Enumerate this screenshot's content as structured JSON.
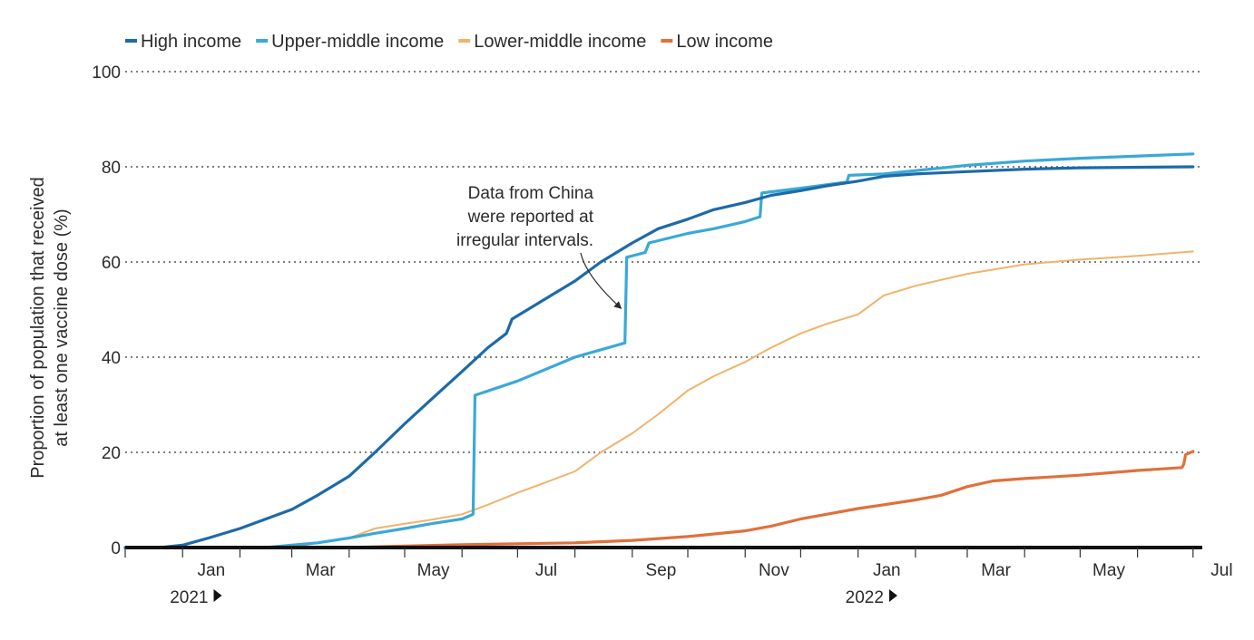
{
  "chart_data": {
    "type": "line",
    "title": "",
    "xlabel": "",
    "ylabel_lines": [
      "Proportion of population that received",
      "at least one vaccine dose (%)"
    ],
    "ylim": [
      0,
      100
    ],
    "y_ticks": [
      0,
      20,
      40,
      60,
      80,
      100
    ],
    "xlim": [
      "2020-12-01",
      "2022-07-06"
    ],
    "x_ticks": [
      {
        "date": "2021-01-01",
        "label": "Jan"
      },
      {
        "date": "2021-03-01",
        "label": "Mar"
      },
      {
        "date": "2021-05-01",
        "label": "May"
      },
      {
        "date": "2021-07-01",
        "label": "Jul"
      },
      {
        "date": "2021-09-01",
        "label": "Sep"
      },
      {
        "date": "2021-11-01",
        "label": "Nov"
      },
      {
        "date": "2022-01-01",
        "label": "Jan"
      },
      {
        "date": "2022-03-01",
        "label": "Mar"
      },
      {
        "date": "2022-05-01",
        "label": "May"
      },
      {
        "date": "2022-07-01",
        "label": "Jul"
      }
    ],
    "year_labels": [
      {
        "date": "2021-01-01",
        "label": "2021"
      },
      {
        "date": "2022-01-01",
        "label": "2022"
      }
    ],
    "grid": "horizontal-dotted",
    "legend_position": "top-left",
    "series": [
      {
        "name": "High income",
        "color": "#1d6aa8",
        "points": [
          [
            "2020-12-01",
            0
          ],
          [
            "2020-12-20",
            0
          ],
          [
            "2021-01-01",
            0.5
          ],
          [
            "2021-01-15",
            2
          ],
          [
            "2021-02-01",
            4
          ],
          [
            "2021-02-15",
            6
          ],
          [
            "2021-03-01",
            8
          ],
          [
            "2021-03-15",
            11
          ],
          [
            "2021-04-01",
            15
          ],
          [
            "2021-04-15",
            20
          ],
          [
            "2021-05-01",
            26
          ],
          [
            "2021-05-15",
            31
          ],
          [
            "2021-06-01",
            37
          ],
          [
            "2021-06-15",
            42
          ],
          [
            "2021-06-25",
            45
          ],
          [
            "2021-06-28",
            48
          ],
          [
            "2021-07-15",
            52
          ],
          [
            "2021-08-01",
            56
          ],
          [
            "2021-08-15",
            60
          ],
          [
            "2021-09-01",
            64
          ],
          [
            "2021-09-15",
            67
          ],
          [
            "2021-10-01",
            69
          ],
          [
            "2021-10-15",
            71
          ],
          [
            "2021-11-01",
            72.5
          ],
          [
            "2021-11-15",
            74
          ],
          [
            "2021-12-01",
            75
          ],
          [
            "2021-12-15",
            76
          ],
          [
            "2022-01-01",
            77
          ],
          [
            "2022-01-15",
            78
          ],
          [
            "2022-02-01",
            78.5
          ],
          [
            "2022-03-01",
            79
          ],
          [
            "2022-04-01",
            79.5
          ],
          [
            "2022-05-01",
            79.8
          ],
          [
            "2022-07-01",
            80
          ]
        ]
      },
      {
        "name": "Upper-middle income",
        "color": "#3aa8d8",
        "points": [
          [
            "2020-12-01",
            0
          ],
          [
            "2021-02-15",
            0
          ],
          [
            "2021-03-01",
            0.5
          ],
          [
            "2021-03-15",
            1
          ],
          [
            "2021-04-01",
            2
          ],
          [
            "2021-04-15",
            3
          ],
          [
            "2021-05-01",
            4
          ],
          [
            "2021-05-15",
            5
          ],
          [
            "2021-06-01",
            6
          ],
          [
            "2021-06-07",
            7
          ],
          [
            "2021-06-08",
            32
          ],
          [
            "2021-07-01",
            35
          ],
          [
            "2021-08-01",
            40
          ],
          [
            "2021-08-28",
            43
          ],
          [
            "2021-08-29",
            61
          ],
          [
            "2021-09-08",
            62
          ],
          [
            "2021-09-10",
            64
          ],
          [
            "2021-10-01",
            66
          ],
          [
            "2021-10-15",
            67
          ],
          [
            "2021-11-01",
            68.5
          ],
          [
            "2021-11-09",
            69.5
          ],
          [
            "2021-11-10",
            74.5
          ],
          [
            "2021-12-01",
            75.5
          ],
          [
            "2021-12-20",
            76.5
          ],
          [
            "2021-12-26",
            76.8
          ],
          [
            "2021-12-27",
            78.2
          ],
          [
            "2022-01-15",
            78.5
          ],
          [
            "2022-02-01",
            79.2
          ],
          [
            "2022-03-01",
            80.3
          ],
          [
            "2022-04-01",
            81.2
          ],
          [
            "2022-05-01",
            81.8
          ],
          [
            "2022-07-01",
            82.7
          ]
        ]
      },
      {
        "name": "Lower-middle income",
        "color": "#f0b36a",
        "points": [
          [
            "2020-12-01",
            0
          ],
          [
            "2021-03-01",
            0
          ],
          [
            "2021-03-15",
            1
          ],
          [
            "2021-04-01",
            2
          ],
          [
            "2021-04-15",
            4
          ],
          [
            "2021-05-01",
            5
          ],
          [
            "2021-05-15",
            5.8
          ],
          [
            "2021-06-01",
            7
          ],
          [
            "2021-06-15",
            9
          ],
          [
            "2021-07-01",
            11.5
          ],
          [
            "2021-07-15",
            13.5
          ],
          [
            "2021-08-01",
            16
          ],
          [
            "2021-08-15",
            20
          ],
          [
            "2021-09-01",
            24
          ],
          [
            "2021-09-15",
            28
          ],
          [
            "2021-10-01",
            33
          ],
          [
            "2021-10-15",
            36
          ],
          [
            "2021-11-01",
            39
          ],
          [
            "2021-11-15",
            42
          ],
          [
            "2021-12-01",
            45
          ],
          [
            "2021-12-15",
            47
          ],
          [
            "2022-01-01",
            49
          ],
          [
            "2022-01-15",
            53
          ],
          [
            "2022-02-01",
            55
          ],
          [
            "2022-03-01",
            57.5
          ],
          [
            "2022-04-01",
            59.5
          ],
          [
            "2022-05-01",
            60.5
          ],
          [
            "2022-06-01",
            61.3
          ],
          [
            "2022-07-01",
            62.2
          ]
        ]
      },
      {
        "name": "Low income",
        "color": "#e0703a",
        "points": [
          [
            "2020-12-01",
            0
          ],
          [
            "2021-04-01",
            0
          ],
          [
            "2021-05-01",
            0.3
          ],
          [
            "2021-06-01",
            0.6
          ],
          [
            "2021-07-01",
            0.8
          ],
          [
            "2021-08-01",
            1
          ],
          [
            "2021-09-01",
            1.5
          ],
          [
            "2021-10-01",
            2.3
          ],
          [
            "2021-11-01",
            3.5
          ],
          [
            "2021-11-15",
            4.5
          ],
          [
            "2021-12-01",
            6
          ],
          [
            "2021-12-15",
            7
          ],
          [
            "2022-01-01",
            8.2
          ],
          [
            "2022-01-15",
            9
          ],
          [
            "2022-02-01",
            10
          ],
          [
            "2022-02-15",
            11
          ],
          [
            "2022-03-01",
            12.8
          ],
          [
            "2022-03-15",
            14
          ],
          [
            "2022-04-01",
            14.5
          ],
          [
            "2022-05-01",
            15.2
          ],
          [
            "2022-06-01",
            16.2
          ],
          [
            "2022-06-25",
            16.8
          ],
          [
            "2022-06-26",
            17.5
          ],
          [
            "2022-06-27",
            19.5
          ],
          [
            "2022-07-01",
            20.2
          ]
        ]
      }
    ],
    "annotation": {
      "lines": [
        "Data from China",
        "were reported at",
        "irregular intervals."
      ],
      "points_to": [
        "2021-08-28",
        55
      ]
    }
  }
}
